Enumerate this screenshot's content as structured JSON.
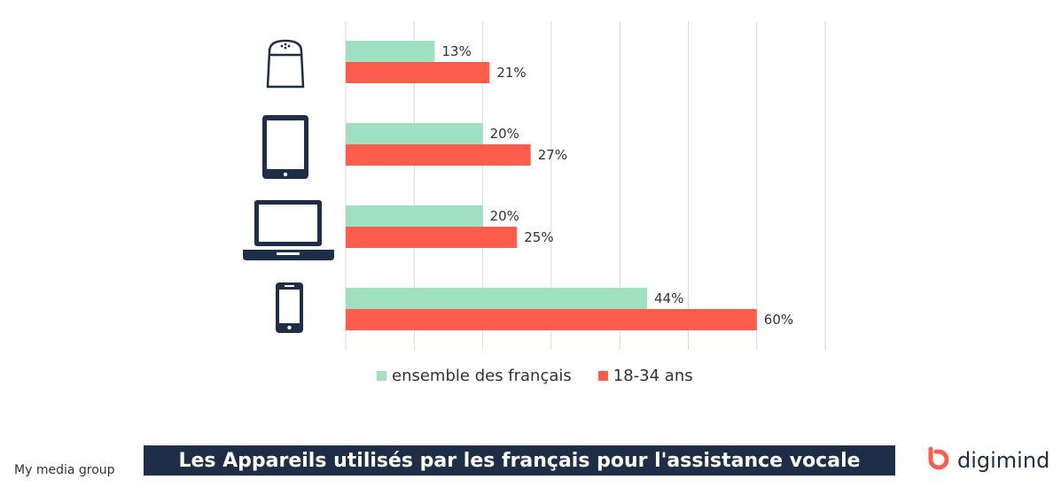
{
  "chart_data": {
    "type": "bar",
    "orientation": "horizontal",
    "categories": [
      "smart-speaker-icon",
      "tablet-icon",
      "laptop-icon",
      "smartphone-icon"
    ],
    "series": [
      {
        "name": "ensemble des français",
        "color": "#9ee0c0",
        "values": [
          13,
          20,
          20,
          44
        ]
      },
      {
        "name": "18-34 ans",
        "color": "#fe5c4c",
        "values": [
          21,
          27,
          25,
          60
        ]
      }
    ],
    "value_labels": [
      [
        "13%",
        "20%",
        "20%",
        "44%"
      ],
      [
        "21%",
        "27%",
        "25%",
        "60%"
      ]
    ],
    "xlim": [
      0,
      70
    ],
    "grid": true,
    "legend_position": "bottom"
  },
  "title": "Les Appareils utilisés par les français pour l'assistance vocale",
  "source": "My media group",
  "brand": {
    "name": "digimind",
    "color": "#fe5c4c"
  },
  "colors": {
    "icon": "#1e2e47",
    "title_bg": "#1e2e47",
    "grid": "#d9d9d9"
  }
}
